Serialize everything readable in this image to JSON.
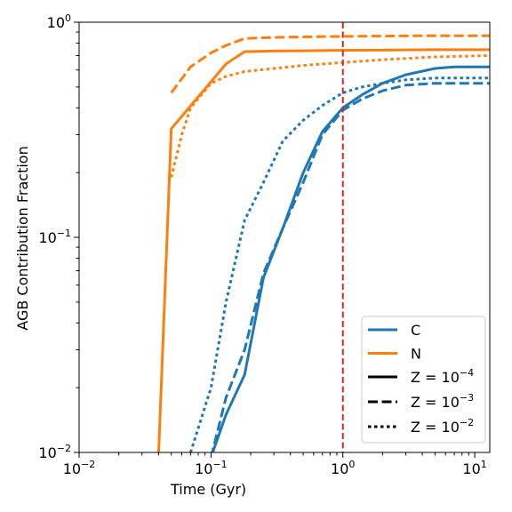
{
  "chart_data": {
    "type": "line",
    "title": "",
    "xlabel": "Time (Gyr)",
    "ylabel": "AGB Contribution Fraction",
    "xscale": "log",
    "yscale": "log",
    "xlim": [
      0.01,
      13.0
    ],
    "ylim": [
      0.01,
      1.0
    ],
    "grid": false,
    "legend_position": "lower-right",
    "x_ticks": [
      {
        "value": 0.01,
        "base": "10",
        "exp": "−2"
      },
      {
        "value": 0.1,
        "base": "10",
        "exp": "−1"
      },
      {
        "value": 1,
        "base": "10",
        "exp": "0"
      },
      {
        "value": 10,
        "base": "10",
        "exp": "1"
      }
    ],
    "y_ticks": [
      {
        "value": 0.01,
        "base": "10",
        "exp": "−2"
      },
      {
        "value": 0.1,
        "base": "10",
        "exp": "−1"
      },
      {
        "value": 1,
        "base": "10",
        "exp": "0"
      }
    ],
    "vline": {
      "x": 1.0,
      "color": "#d62728",
      "style": "dashed"
    },
    "legend": {
      "elements": [
        {
          "label": "C",
          "color": "#1f77b4"
        },
        {
          "label": "N",
          "color": "#ff7f0e"
        }
      ],
      "metallicities": [
        {
          "prefix": "Z = 10",
          "exp": "−4",
          "style": "solid"
        },
        {
          "prefix": "Z = 10",
          "exp": "−3",
          "style": "dashed"
        },
        {
          "prefix": "Z = 10",
          "exp": "−2",
          "style": "dotted"
        }
      ]
    },
    "series": [
      {
        "element": "C",
        "metallicity": "1e-4",
        "color": "#1f77b4",
        "style": "solid",
        "x": [
          0.1,
          0.13,
          0.18,
          0.25,
          0.35,
          0.5,
          0.7,
          1.0,
          1.4,
          2.0,
          3.0,
          5.0,
          7.0,
          13.0
        ],
        "y": [
          0.0095,
          0.015,
          0.023,
          0.065,
          0.11,
          0.2,
          0.31,
          0.4,
          0.46,
          0.52,
          0.57,
          0.61,
          0.62,
          0.62
        ]
      },
      {
        "element": "C",
        "metallicity": "1e-3",
        "color": "#1f77b4",
        "style": "dashed",
        "x": [
          0.1,
          0.13,
          0.18,
          0.25,
          0.35,
          0.5,
          0.7,
          1.0,
          1.4,
          2.0,
          3.0,
          5.0,
          7.0,
          13.0
        ],
        "y": [
          0.0095,
          0.018,
          0.03,
          0.068,
          0.11,
          0.18,
          0.3,
          0.39,
          0.44,
          0.48,
          0.51,
          0.52,
          0.52,
          0.52
        ]
      },
      {
        "element": "C",
        "metallicity": "1e-2",
        "color": "#1f77b4",
        "style": "dotted",
        "x": [
          0.07,
          0.1,
          0.13,
          0.18,
          0.25,
          0.35,
          0.5,
          0.7,
          1.0,
          1.4,
          2.0,
          3.0,
          5.0,
          13.0
        ],
        "y": [
          0.01,
          0.02,
          0.05,
          0.12,
          0.18,
          0.28,
          0.35,
          0.41,
          0.47,
          0.5,
          0.52,
          0.54,
          0.55,
          0.55
        ]
      },
      {
        "element": "N",
        "metallicity": "1e-4",
        "color": "#ff7f0e",
        "style": "solid",
        "x": [
          0.04,
          0.05,
          0.13,
          0.18,
          0.3,
          0.5,
          1.0,
          2.0,
          5.0,
          13.0
        ],
        "y": [
          0.0095,
          0.32,
          0.64,
          0.73,
          0.735,
          0.737,
          0.74,
          0.742,
          0.745,
          0.745
        ]
      },
      {
        "element": "N",
        "metallicity": "1e-3",
        "color": "#ff7f0e",
        "style": "dashed",
        "x": [
          0.05,
          0.07,
          0.1,
          0.13,
          0.18,
          0.3,
          0.5,
          1.0,
          2.0,
          5.0,
          13.0
        ],
        "y": [
          0.47,
          0.62,
          0.72,
          0.78,
          0.84,
          0.85,
          0.855,
          0.86,
          0.862,
          0.865,
          0.865
        ]
      },
      {
        "element": "N",
        "metallicity": "1e-2",
        "color": "#ff7f0e",
        "style": "dotted",
        "x": [
          0.05,
          0.06,
          0.07,
          0.1,
          0.13,
          0.18,
          0.3,
          0.5,
          1.0,
          2.0,
          5.0,
          13.0
        ],
        "y": [
          0.19,
          0.3,
          0.4,
          0.52,
          0.56,
          0.59,
          0.61,
          0.63,
          0.65,
          0.67,
          0.69,
          0.7
        ]
      }
    ]
  }
}
